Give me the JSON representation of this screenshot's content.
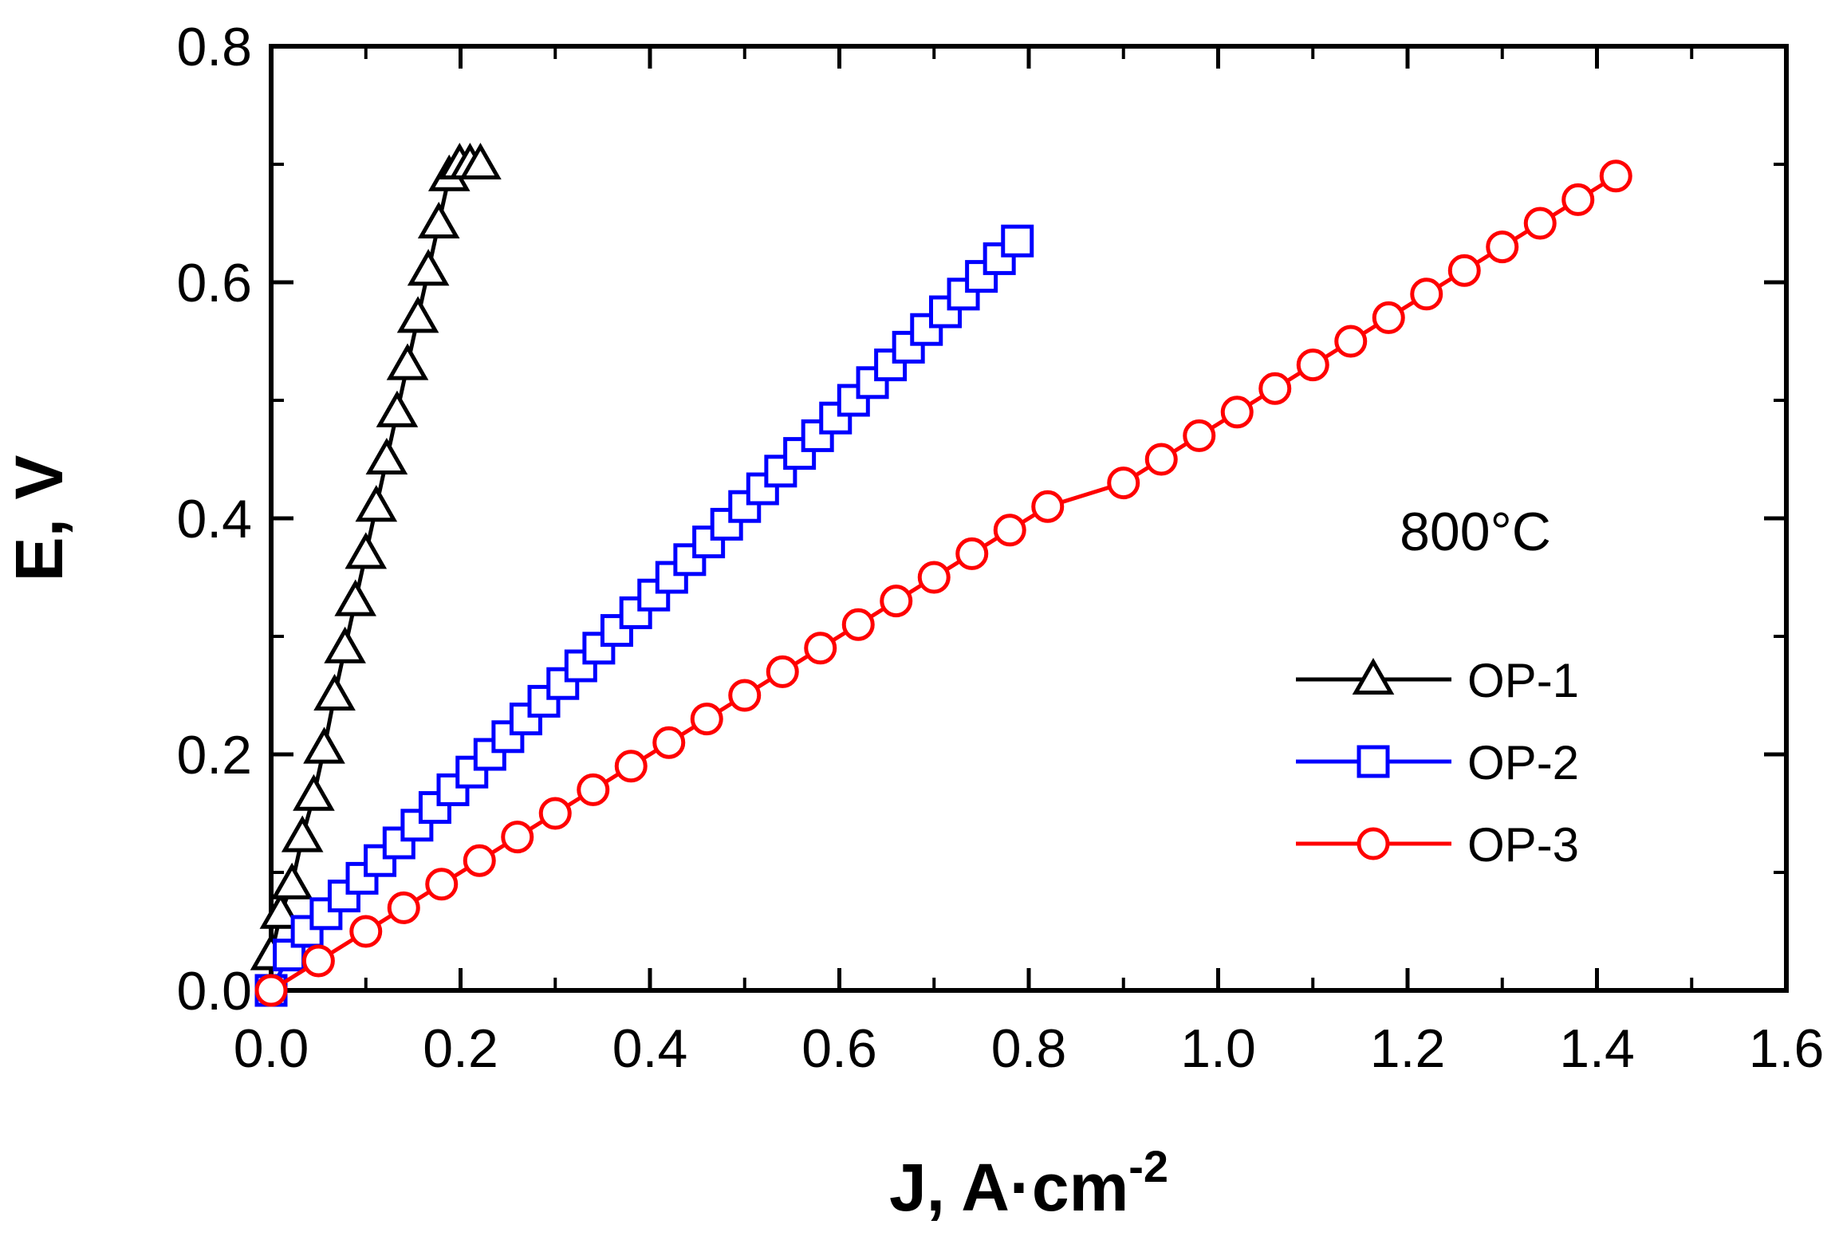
{
  "chart_data": {
    "type": "line",
    "xlabel": "J, A·cm",
    "xlabel_superscript": "-2",
    "ylabel": "E, V",
    "xlim": [
      0.0,
      1.6
    ],
    "ylim": [
      0.0,
      0.8
    ],
    "xticks": [
      "0.0",
      "0.2",
      "0.4",
      "0.6",
      "0.8",
      "1.0",
      "1.2",
      "1.4",
      "1.6"
    ],
    "yticks": [
      "0.0",
      "0.2",
      "0.4",
      "0.6",
      "0.8"
    ],
    "annotation": "800°C",
    "legend_position": "right-middle",
    "grid": false,
    "series": [
      {
        "name": "OP-1",
        "marker": "triangle",
        "color": "#000000",
        "x": [
          0.0,
          0.01,
          0.022,
          0.033,
          0.045,
          0.056,
          0.067,
          0.078,
          0.089,
          0.1,
          0.111,
          0.122,
          0.133,
          0.144,
          0.155,
          0.166,
          0.177,
          0.188,
          0.199,
          0.21,
          0.221
        ],
        "y": [
          0.03,
          0.065,
          0.09,
          0.13,
          0.165,
          0.205,
          0.25,
          0.29,
          0.33,
          0.37,
          0.41,
          0.45,
          0.49,
          0.53,
          0.57,
          0.61,
          0.65,
          0.69,
          0.7,
          0.7,
          0.7
        ]
      },
      {
        "name": "OP-2",
        "marker": "square",
        "color": "#0000ff",
        "x": [
          0.0,
          0.019,
          0.038,
          0.058,
          0.077,
          0.096,
          0.115,
          0.135,
          0.154,
          0.173,
          0.192,
          0.212,
          0.231,
          0.25,
          0.269,
          0.288,
          0.308,
          0.327,
          0.346,
          0.365,
          0.385,
          0.404,
          0.423,
          0.442,
          0.462,
          0.481,
          0.5,
          0.519,
          0.538,
          0.558,
          0.577,
          0.596,
          0.615,
          0.635,
          0.654,
          0.673,
          0.692,
          0.712,
          0.731,
          0.75,
          0.769,
          0.788
        ],
        "y": [
          0.0,
          0.03,
          0.05,
          0.065,
          0.08,
          0.095,
          0.11,
          0.125,
          0.14,
          0.155,
          0.17,
          0.185,
          0.2,
          0.215,
          0.23,
          0.245,
          0.26,
          0.275,
          0.29,
          0.305,
          0.32,
          0.335,
          0.35,
          0.365,
          0.38,
          0.395,
          0.41,
          0.425,
          0.44,
          0.455,
          0.47,
          0.485,
          0.5,
          0.515,
          0.53,
          0.545,
          0.56,
          0.575,
          0.59,
          0.605,
          0.62,
          0.635
        ]
      },
      {
        "name": "OP-3",
        "marker": "circle",
        "color": "#ff0000",
        "x": [
          0.0,
          0.05,
          0.1,
          0.14,
          0.18,
          0.22,
          0.26,
          0.3,
          0.34,
          0.38,
          0.42,
          0.46,
          0.5,
          0.54,
          0.58,
          0.62,
          0.66,
          0.7,
          0.74,
          0.78,
          0.82,
          0.9,
          0.94,
          0.98,
          1.02,
          1.06,
          1.1,
          1.14,
          1.18,
          1.22,
          1.26,
          1.3,
          1.34,
          1.38,
          1.42
        ],
        "y": [
          0.0,
          0.025,
          0.05,
          0.07,
          0.09,
          0.11,
          0.13,
          0.15,
          0.17,
          0.19,
          0.21,
          0.23,
          0.25,
          0.27,
          0.29,
          0.31,
          0.33,
          0.35,
          0.37,
          0.39,
          0.41,
          0.43,
          0.45,
          0.47,
          0.49,
          0.51,
          0.53,
          0.55,
          0.57,
          0.59,
          0.61,
          0.63,
          0.65,
          0.67,
          0.69
        ]
      }
    ]
  }
}
